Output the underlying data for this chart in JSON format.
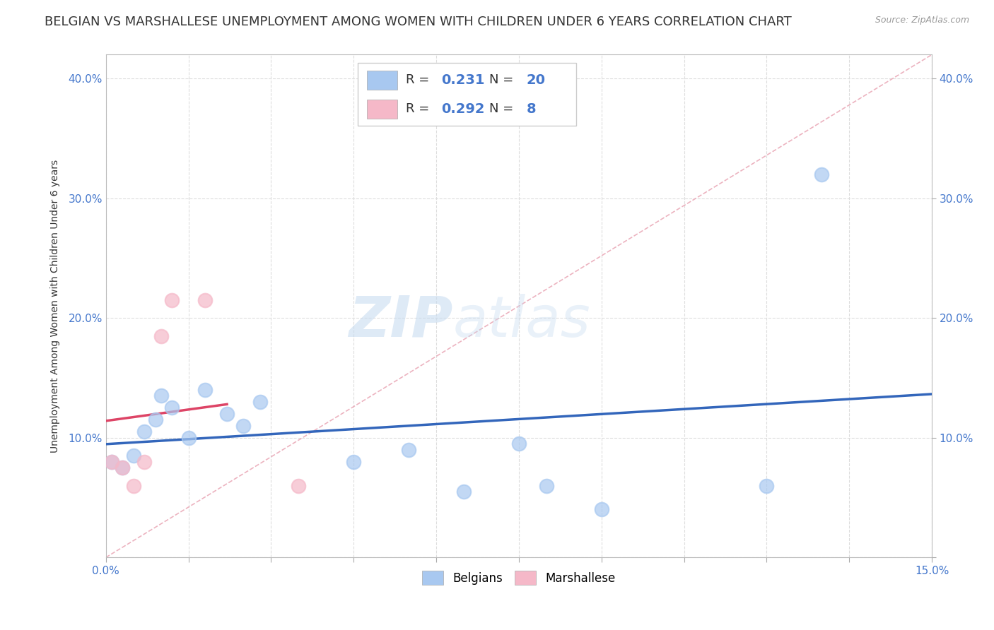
{
  "title": "BELGIAN VS MARSHALLESE UNEMPLOYMENT AMONG WOMEN WITH CHILDREN UNDER 6 YEARS CORRELATION CHART",
  "source": "Source: ZipAtlas.com",
  "ylabel": "Unemployment Among Women with Children Under 6 years",
  "xlim": [
    0.0,
    0.15
  ],
  "ylim": [
    0.0,
    0.42
  ],
  "xticks": [
    0.0,
    0.015,
    0.03,
    0.045,
    0.06,
    0.075,
    0.09,
    0.105,
    0.12,
    0.135,
    0.15
  ],
  "xtick_labels_show": {
    "0.0": "0.0%",
    "0.15": "15.0%"
  },
  "yticks": [
    0.0,
    0.1,
    0.2,
    0.3,
    0.4
  ],
  "ytick_labels": [
    "",
    "10.0%",
    "20.0%",
    "30.0%",
    "40.0%"
  ],
  "belgian_x": [
    0.001,
    0.003,
    0.005,
    0.007,
    0.009,
    0.01,
    0.012,
    0.015,
    0.018,
    0.022,
    0.025,
    0.028,
    0.045,
    0.055,
    0.065,
    0.075,
    0.08,
    0.09,
    0.12,
    0.13
  ],
  "belgian_y": [
    0.08,
    0.075,
    0.085,
    0.105,
    0.115,
    0.135,
    0.125,
    0.1,
    0.14,
    0.12,
    0.11,
    0.13,
    0.08,
    0.09,
    0.055,
    0.095,
    0.06,
    0.04,
    0.06,
    0.32
  ],
  "marshallese_x": [
    0.001,
    0.003,
    0.005,
    0.007,
    0.01,
    0.012,
    0.018,
    0.035
  ],
  "marshallese_y": [
    0.08,
    0.075,
    0.06,
    0.08,
    0.185,
    0.215,
    0.215,
    0.06
  ],
  "belgian_color": "#a8c8f0",
  "marshallese_color": "#f5b8c8",
  "belgian_line_color": "#3366bb",
  "marshallese_line_color": "#dd4466",
  "diagonal_color": "#e8a0b0",
  "r_belgian": "0.231",
  "n_belgian": "20",
  "r_marshallese": "0.292",
  "n_marshallese": "8",
  "watermark_zip": "ZIP",
  "watermark_atlas": "atlas",
  "title_fontsize": 13,
  "axis_label_fontsize": 10,
  "tick_fontsize": 11,
  "legend_fontsize": 13,
  "background_color": "#ffffff",
  "grid_color": "#dddddd",
  "legend_text_color": "#4477cc",
  "legend_label_color": "#333333"
}
